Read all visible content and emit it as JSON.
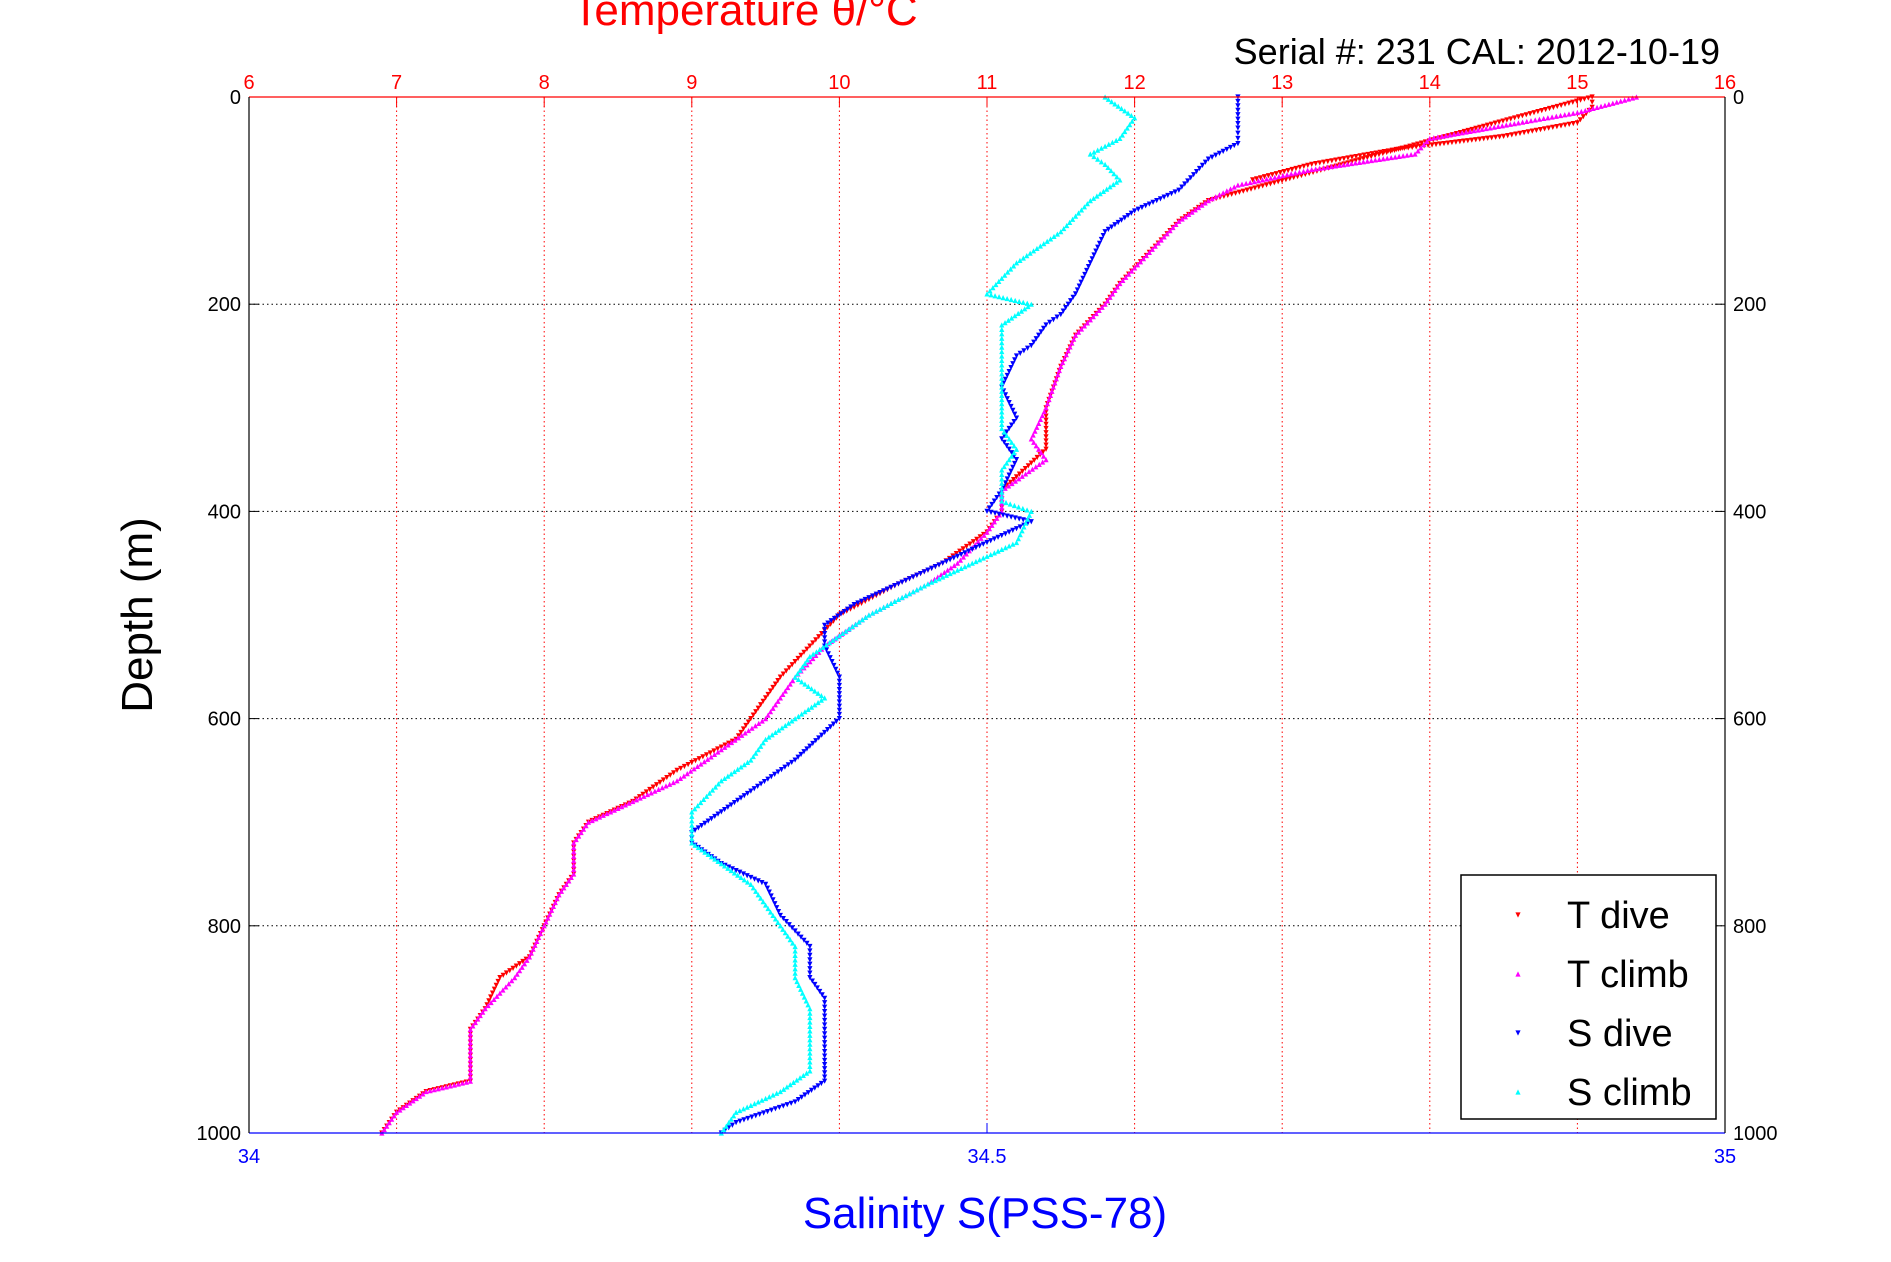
{
  "chart_data": {
    "type": "scatter",
    "title": "Temperature θ/°C",
    "subtitle": "Serial #: 231  CAL: 2012-10-19",
    "top_axis": {
      "label": "Temperature θ/°C",
      "min": 6,
      "max": 16,
      "ticks": [
        "6",
        "7",
        "8",
        "9",
        "10",
        "11",
        "12",
        "13",
        "14",
        "15",
        "16"
      ],
      "color": "#ff0000"
    },
    "bottom_axis": {
      "label": "Salinity S(PSS-78)",
      "min": 34,
      "max": 35,
      "ticks": [
        "34",
        "34.5",
        "35"
      ],
      "color": "#0000ff"
    },
    "y_axis": {
      "label": "Depth (m)",
      "min": 0,
      "max": 1000,
      "reversed": true,
      "ticks": [
        "0",
        "200",
        "400",
        "600",
        "800",
        "1000"
      ]
    },
    "grid": true,
    "legend_position": "bottom-right",
    "series": [
      {
        "name": "T dive",
        "axis": "temperature",
        "color": "#ff0000",
        "marker": "triangle-down",
        "points": [
          [
            12.8,
            80
          ],
          [
            13.2,
            65
          ],
          [
            13.8,
            50
          ],
          [
            14.5,
            38
          ],
          [
            15.0,
            25
          ],
          [
            15.1,
            10
          ],
          [
            15.1,
            0
          ],
          [
            12.5,
            100
          ],
          [
            12.3,
            120
          ],
          [
            12.1,
            150
          ],
          [
            11.9,
            180
          ],
          [
            11.8,
            200
          ],
          [
            11.6,
            230
          ],
          [
            11.5,
            260
          ],
          [
            11.4,
            300
          ],
          [
            11.4,
            340
          ],
          [
            11.1,
            380
          ],
          [
            11.1,
            400
          ],
          [
            11.0,
            420
          ],
          [
            10.7,
            450
          ],
          [
            10.4,
            470
          ],
          [
            10.0,
            500
          ],
          [
            9.8,
            530
          ],
          [
            9.6,
            560
          ],
          [
            9.4,
            600
          ],
          [
            9.3,
            620
          ],
          [
            8.9,
            650
          ],
          [
            8.6,
            680
          ],
          [
            8.3,
            700
          ],
          [
            8.2,
            720
          ],
          [
            8.2,
            750
          ],
          [
            8.1,
            770
          ],
          [
            8.0,
            800
          ],
          [
            7.9,
            830
          ],
          [
            7.7,
            850
          ],
          [
            7.6,
            880
          ],
          [
            7.5,
            900
          ],
          [
            7.5,
            950
          ],
          [
            7.2,
            960
          ],
          [
            7.0,
            980
          ],
          [
            6.9,
            1000
          ]
        ]
      },
      {
        "name": "T climb",
        "axis": "temperature",
        "color": "#ff00ff",
        "marker": "triangle-up",
        "points": [
          [
            15.4,
            0
          ],
          [
            15.0,
            15
          ],
          [
            14.6,
            25
          ],
          [
            14.0,
            40
          ],
          [
            13.9,
            55
          ],
          [
            13.2,
            70
          ],
          [
            12.7,
            85
          ],
          [
            12.5,
            100
          ],
          [
            12.3,
            120
          ],
          [
            12.1,
            150
          ],
          [
            11.9,
            180
          ],
          [
            11.8,
            200
          ],
          [
            11.6,
            230
          ],
          [
            11.5,
            260
          ],
          [
            11.4,
            300
          ],
          [
            11.3,
            330
          ],
          [
            11.4,
            350
          ],
          [
            11.1,
            380
          ],
          [
            11.1,
            400
          ],
          [
            11.0,
            420
          ],
          [
            10.8,
            450
          ],
          [
            10.6,
            470
          ],
          [
            10.2,
            500
          ],
          [
            9.9,
            530
          ],
          [
            9.7,
            560
          ],
          [
            9.5,
            600
          ],
          [
            9.2,
            630
          ],
          [
            8.9,
            660
          ],
          [
            8.6,
            680
          ],
          [
            8.3,
            700
          ],
          [
            8.2,
            720
          ],
          [
            8.2,
            750
          ],
          [
            8.1,
            770
          ],
          [
            8.0,
            800
          ],
          [
            7.9,
            830
          ],
          [
            7.8,
            850
          ],
          [
            7.6,
            880
          ],
          [
            7.5,
            900
          ],
          [
            7.5,
            950
          ],
          [
            7.2,
            960
          ],
          [
            7.0,
            980
          ],
          [
            6.9,
            1000
          ]
        ]
      },
      {
        "name": "S dive",
        "axis": "salinity",
        "color": "#0000ff",
        "marker": "triangle-down",
        "points": [
          [
            34.67,
            0
          ],
          [
            34.67,
            30
          ],
          [
            34.67,
            45
          ],
          [
            34.65,
            60
          ],
          [
            34.63,
            90
          ],
          [
            34.6,
            110
          ],
          [
            34.58,
            130
          ],
          [
            34.57,
            160
          ],
          [
            34.56,
            190
          ],
          [
            34.55,
            210
          ],
          [
            34.54,
            220
          ],
          [
            34.53,
            240
          ],
          [
            34.52,
            250
          ],
          [
            34.51,
            280
          ],
          [
            34.52,
            310
          ],
          [
            34.51,
            330
          ],
          [
            34.52,
            350
          ],
          [
            34.51,
            380
          ],
          [
            34.5,
            400
          ],
          [
            34.53,
            410
          ],
          [
            34.47,
            450
          ],
          [
            34.44,
            470
          ],
          [
            34.41,
            490
          ],
          [
            34.39,
            510
          ],
          [
            34.39,
            530
          ],
          [
            34.4,
            560
          ],
          [
            34.4,
            580
          ],
          [
            34.4,
            600
          ],
          [
            34.37,
            640
          ],
          [
            34.34,
            670
          ],
          [
            34.32,
            690
          ],
          [
            34.3,
            710
          ],
          [
            34.3,
            720
          ],
          [
            34.32,
            740
          ],
          [
            34.35,
            760
          ],
          [
            34.36,
            790
          ],
          [
            34.38,
            820
          ],
          [
            34.38,
            850
          ],
          [
            34.39,
            870
          ],
          [
            34.39,
            900
          ],
          [
            34.39,
            930
          ],
          [
            34.39,
            950
          ],
          [
            34.37,
            970
          ],
          [
            34.33,
            990
          ],
          [
            34.32,
            1000
          ]
        ]
      },
      {
        "name": "S climb",
        "axis": "salinity",
        "color": "#00ffff",
        "marker": "triangle-up",
        "points": [
          [
            34.58,
            0
          ],
          [
            34.6,
            20
          ],
          [
            34.59,
            40
          ],
          [
            34.57,
            55
          ],
          [
            34.58,
            65
          ],
          [
            34.59,
            80
          ],
          [
            34.57,
            100
          ],
          [
            34.55,
            130
          ],
          [
            34.52,
            160
          ],
          [
            34.5,
            190
          ],
          [
            34.53,
            200
          ],
          [
            34.51,
            220
          ],
          [
            34.51,
            250
          ],
          [
            34.51,
            280
          ],
          [
            34.51,
            300
          ],
          [
            34.51,
            320
          ],
          [
            34.52,
            340
          ],
          [
            34.51,
            360
          ],
          [
            34.51,
            390
          ],
          [
            34.53,
            400
          ],
          [
            34.52,
            430
          ],
          [
            34.49,
            450
          ],
          [
            34.46,
            470
          ],
          [
            34.42,
            500
          ],
          [
            34.4,
            520
          ],
          [
            34.38,
            540
          ],
          [
            34.37,
            560
          ],
          [
            34.39,
            580
          ],
          [
            34.37,
            600
          ],
          [
            34.35,
            620
          ],
          [
            34.34,
            640
          ],
          [
            34.32,
            660
          ],
          [
            34.3,
            690
          ],
          [
            34.3,
            720
          ],
          [
            34.32,
            740
          ],
          [
            34.34,
            760
          ],
          [
            34.35,
            780
          ],
          [
            34.36,
            800
          ],
          [
            34.37,
            820
          ],
          [
            34.37,
            850
          ],
          [
            34.38,
            880
          ],
          [
            34.38,
            910
          ],
          [
            34.38,
            940
          ],
          [
            34.36,
            960
          ],
          [
            34.33,
            980
          ],
          [
            34.32,
            1000
          ]
        ]
      }
    ]
  }
}
